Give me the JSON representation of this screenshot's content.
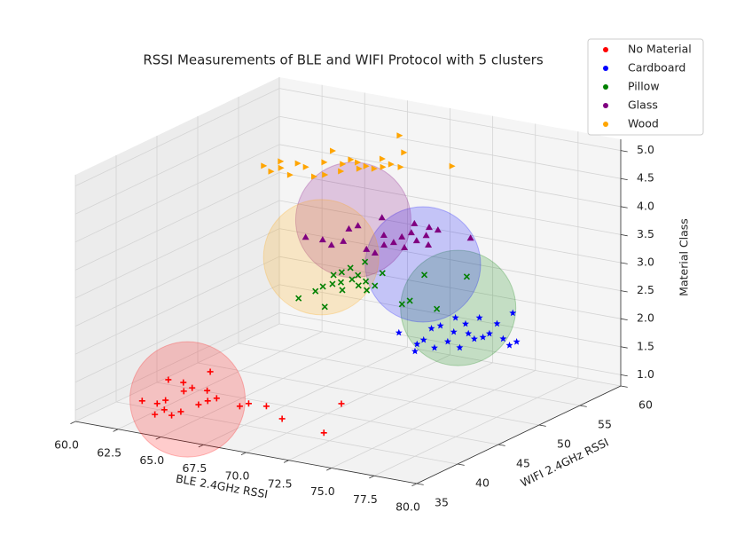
{
  "chart_data": {
    "type": "scatter3d",
    "title": "RSSI Measurements of BLE and WIFI Protocol with 5 clusters",
    "xlabel": "BLE 2.4GHz RSSI",
    "ylabel": "WIFI 2.4GHz RSSI",
    "zlabel": "Material Class",
    "xlim": [
      60,
      80
    ],
    "ylim": [
      35,
      60
    ],
    "zlim": [
      0.8,
      5.2
    ],
    "xticks": [
      {
        "value": 60,
        "label": "60.0"
      },
      62.5,
      {
        "value": 65,
        "label": "65.0"
      },
      67.5,
      {
        "value": 70,
        "label": "70.0"
      },
      72.5,
      {
        "value": 75,
        "label": "75.0"
      },
      77.5,
      {
        "value": 80,
        "label": "80.0"
      }
    ],
    "yticks": [
      35,
      40,
      45,
      50,
      55,
      60
    ],
    "zticks": [
      {
        "value": 1,
        "label": "1.0"
      },
      1.5,
      {
        "value": 2,
        "label": "2.0"
      },
      2.5,
      {
        "value": 3,
        "label": "3.0"
      },
      3.5,
      {
        "value": 4,
        "label": "4.0"
      },
      4.5,
      {
        "value": 5,
        "label": "5.0"
      }
    ],
    "grid": true,
    "legend": "upper right",
    "series": [
      {
        "name": "No Material",
        "color": "#ff0000",
        "marker": "plus",
        "x": [
          61.24,
          62.12,
          62.31,
          62.0,
          62.88,
          62.94,
          62.91,
          62.97,
          63.85,
          63.75,
          63.73,
          64.54,
          64.6,
          64.73,
          64.79,
          64.93,
          66.62,
          66.76,
          67.75,
          69.53,
          70.71,
          72.55
        ],
        "y": [
          43.8,
          43.8,
          46.7,
          39.0,
          39.0,
          39.9,
          42.2,
          43.1,
          43.1,
          36.9,
          38.1,
          37.3,
          38.3,
          40.2,
          41.2,
          42.0,
          41.3,
          42.1,
          42.2,
          40.4,
          45.2,
          39.2
        ],
        "z": [
          1,
          1,
          1,
          1,
          1,
          1,
          1,
          1,
          1,
          1,
          1,
          1,
          1,
          1,
          1,
          1,
          1,
          1,
          1,
          1,
          1,
          1
        ]
      },
      {
        "name": "Cardboard",
        "color": "#0000ff",
        "marker": "star",
        "x": [
          71.83,
          73.61,
          74.16,
          72.83,
          74.68,
          72.97,
          74.69,
          74.09,
          72.9,
          75.73,
          73.87,
          74.85,
          75.58,
          73.92,
          75.8,
          75.75,
          75.19,
          76.79,
          77.64,
          74.92,
          77.63,
          73.52
        ],
        "y": [
          49.9,
          48.4,
          47.0,
          51.8,
          48.3,
          52.6,
          49.9,
          51.9,
          54.6,
          49.2,
          53.8,
          52.1,
          51.3,
          55.4,
          51.9,
          52.8,
          54.9,
          52.3,
          51.3,
          57.4,
          52.2,
          49.4
        ],
        "z": [
          2,
          2,
          2,
          2,
          2,
          2,
          2,
          2,
          2,
          2,
          2,
          2,
          2,
          2,
          2,
          2,
          2,
          2,
          2,
          2,
          2,
          2
        ]
      },
      {
        "name": "Pillow",
        "color": "#008000",
        "marker": "x",
        "x": [
          69.49,
          69.57,
          71.36,
          69.48,
          69.66,
          68.91,
          69.87,
          70.62,
          68.99,
          70.09,
          70.9,
          69.96,
          69.08,
          70.85,
          71.67,
          71.62,
          70.82,
          74.4,
          74.43,
          72.75,
          76.3,
          74.71,
          69.01
        ],
        "y": [
          42.5,
          44.4,
          41.8,
          45.5,
          46.3,
          48.0,
          46.9,
          45.5,
          49.9,
          47.8,
          46.9,
          48.8,
          51.5,
          47.9,
          46.3,
          47.4,
          50.0,
          44.9,
          45.8,
          51.1,
          45.2,
          52.2,
          48.8
        ],
        "z": [
          3,
          3,
          3,
          3,
          3,
          3,
          3,
          3,
          3,
          3,
          3,
          3,
          3,
          3,
          3,
          3,
          3,
          3,
          3,
          3,
          3,
          3,
          3
        ]
      },
      {
        "name": "Glass",
        "color": "#800080",
        "marker": "triangle-up",
        "x": [
          69.33,
          70.28,
          71.13,
          71.3,
          70.43,
          70.53,
          72.99,
          70.84,
          72.48,
          73.35,
          73.53,
          73.39,
          74.45,
          73.42,
          72.74,
          74.35,
          74.29,
          75.23,
          73.7,
          74.31,
          76.41,
          73.68
        ],
        "y": [
          43.7,
          43.8,
          43.1,
          44.2,
          46.7,
          47.6,
          43.5,
          49.9,
          46.7,
          44.9,
          45.7,
          47.0,
          45.1,
          48.1,
          49.9,
          46.8,
          48.1,
          46.4,
          49.7,
          49.5,
          49.1,
          43.1
        ],
        "z": [
          4,
          4,
          4,
          4,
          4,
          4,
          4,
          4,
          4,
          4,
          4,
          4,
          4,
          4,
          4,
          4,
          4,
          4,
          4,
          4,
          4,
          4
        ]
      },
      {
        "name": "Wood",
        "color": "#ffa500",
        "marker": "triangle-right",
        "x": [
          66.2,
          67.01,
          66.52,
          67.11,
          68.12,
          67.43,
          68.09,
          69.29,
          68.45,
          69.59,
          67.8,
          69.95,
          69.39,
          69.34,
          69.88,
          70.5,
          70.57,
          71.14,
          70.61,
          71.36,
          71.46,
          69.28,
          72.11,
          70.97,
          74.22
        ],
        "y": [
          45.1,
          44.3,
          46.5,
          45.3,
          44.3,
          46.7,
          46.3,
          44.8,
          47.8,
          45.5,
          50.2,
          46.7,
          48.1,
          49.2,
          48.9,
          47.8,
          48.5,
          48.3,
          50.4,
          48.9,
          49.7,
          55.3,
          49.5,
          52.3,
          51.4
        ],
        "z": [
          5,
          5,
          5,
          5,
          5,
          5,
          5,
          5,
          5,
          5,
          5,
          5,
          5,
          5,
          5,
          5,
          5,
          5,
          5,
          5,
          5,
          5,
          5,
          5,
          5
        ]
      }
    ],
    "clusters": [
      {
        "color": "#ff0000",
        "center": [
          63.8,
          40.8,
          1
        ]
      },
      {
        "color": "#008000",
        "center": [
          72.15,
          56.5,
          2
        ]
      },
      {
        "color": "#0000ff",
        "center": [
          71.76,
          53.0,
          3
        ]
      },
      {
        "color": "#800080",
        "center": [
          69.83,
          48.5,
          4
        ]
      },
      {
        "color": "#ffa500",
        "center": [
          66.8,
          50.9,
          3
        ]
      }
    ]
  }
}
